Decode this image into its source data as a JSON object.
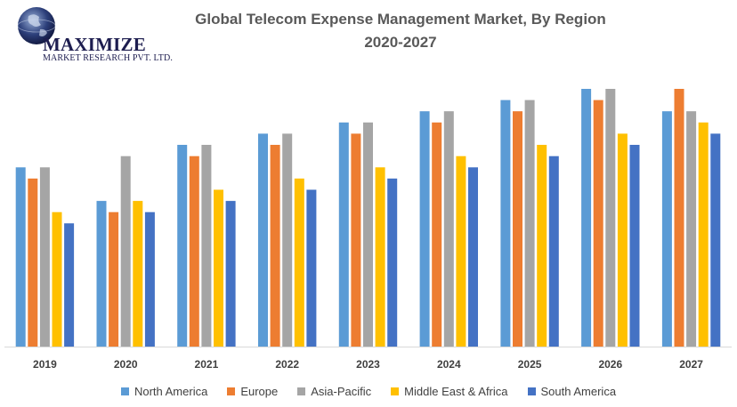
{
  "logo": {
    "name": "MAXIMIZE",
    "subtitle": "MARKET RESEARCH PVT. LTD."
  },
  "chart_data": {
    "type": "bar",
    "title": "Global Telecom Expense Management Market, By Region",
    "subtitle": "2020-2027",
    "categories": [
      "2019",
      "2020",
      "2021",
      "2022",
      "2023",
      "2024",
      "2025",
      "2026",
      "2027"
    ],
    "series": [
      {
        "name": "North America",
        "color": "#5B9BD5",
        "values": [
          16,
          13,
          18,
          19,
          20,
          21,
          22,
          23,
          21
        ]
      },
      {
        "name": "Europe",
        "color": "#ED7D31",
        "values": [
          15,
          12,
          17,
          18,
          19,
          20,
          21,
          22,
          23
        ]
      },
      {
        "name": "Asia-Pacific",
        "color": "#A5A5A5",
        "values": [
          16,
          17,
          18,
          19,
          20,
          21,
          22,
          23,
          21
        ]
      },
      {
        "name": "Middle East & Africa",
        "color": "#FFC000",
        "values": [
          12,
          13,
          14,
          15,
          16,
          17,
          18,
          19,
          20
        ]
      },
      {
        "name": "South America",
        "color": "#4472C4",
        "values": [
          11,
          12,
          13,
          14,
          15,
          16,
          17,
          18,
          19
        ]
      }
    ],
    "ylim": [
      0,
      23
    ],
    "grid": false,
    "legend": "bottom"
  }
}
